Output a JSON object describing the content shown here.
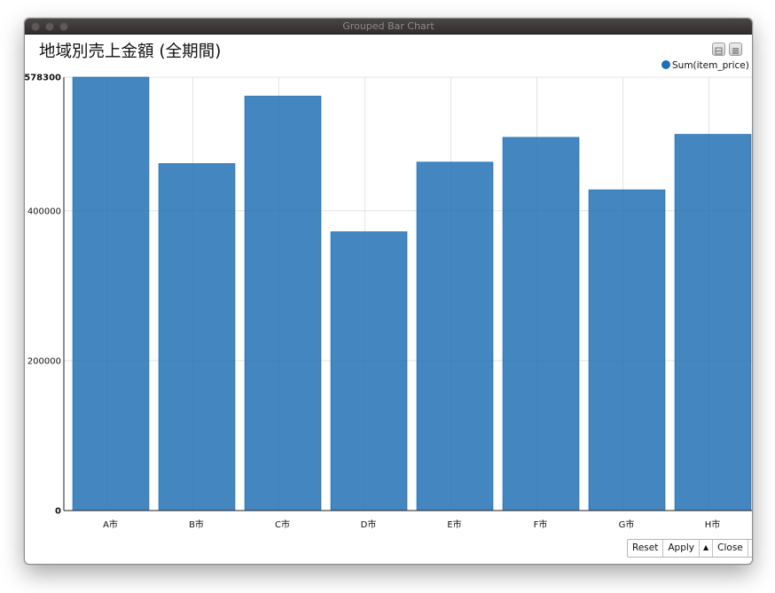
{
  "window": {
    "title": "Grouped Bar Chart"
  },
  "toolbar_icons": [
    "minimize-panel-icon",
    "menu-icon"
  ],
  "controls": {
    "reset_label": "Reset",
    "apply_label": "Apply",
    "close_label": "Close",
    "arrow": "▲"
  },
  "chart_data": {
    "type": "bar",
    "title": "地域別売上金額 (全期間)",
    "xlabel": "",
    "ylabel": "",
    "categories": [
      "A市",
      "B市",
      "C市",
      "D市",
      "E市",
      "F市",
      "G市",
      "H市"
    ],
    "series": [
      {
        "name": "Sum(item_price)",
        "color": "#1f6fb4",
        "values": [
          578300,
          463000,
          553000,
          372000,
          465000,
          498000,
          428000,
          502000
        ]
      }
    ],
    "ylim": [
      0,
      578300
    ],
    "yticks": [
      "0",
      "200000",
      "400000",
      "578300"
    ],
    "legend_position": "top-right",
    "grid": true
  }
}
